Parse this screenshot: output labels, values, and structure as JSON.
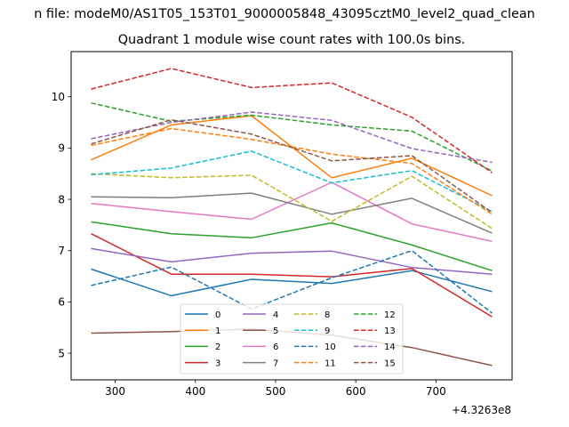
{
  "chart_data": {
    "type": "line",
    "suptitle": "n file: modeM0/AS1T05_153T01_9000005848_43095cztM0_level2_quad_clean",
    "title": "Quadrant 1 module wise count rates with 100.0s bins.",
    "xlabel": "",
    "ylabel": "",
    "x_offset_label": "+4.3263e8",
    "x": [
      270,
      370,
      470,
      570,
      670,
      770
    ],
    "xlim": [
      245,
      795
    ],
    "ylim": [
      4.48,
      10.88
    ],
    "xticks": [
      300,
      400,
      500,
      600,
      700
    ],
    "xtick_labels": [
      "300",
      "400",
      "500",
      "600",
      "700"
    ],
    "yticks": [
      5,
      6,
      7,
      8,
      9,
      10
    ],
    "ytick_labels": [
      "5",
      "6",
      "7",
      "8",
      "9",
      "10"
    ],
    "legend_position": "lower-center",
    "legend_columns": 4,
    "series": [
      {
        "name": "0",
        "color": "#1f77b4",
        "dash": "solid",
        "values": [
          6.64,
          6.12,
          6.44,
          6.36,
          6.61,
          6.2
        ]
      },
      {
        "name": "1",
        "color": "#ff7f0e",
        "dash": "solid",
        "values": [
          8.77,
          9.45,
          9.63,
          8.42,
          8.8,
          8.07
        ]
      },
      {
        "name": "2",
        "color": "#2ca02c",
        "dash": "solid",
        "values": [
          7.56,
          7.33,
          7.25,
          7.54,
          7.11,
          6.61
        ]
      },
      {
        "name": "3",
        "color": "#d62728",
        "dash": "solid",
        "values": [
          7.33,
          6.54,
          6.54,
          6.49,
          6.65,
          5.71
        ]
      },
      {
        "name": "4",
        "color": "#9467bd",
        "dash": "solid",
        "values": [
          7.04,
          6.78,
          6.95,
          6.99,
          6.67,
          6.54
        ]
      },
      {
        "name": "5",
        "color": "#8c564b",
        "dash": "solid",
        "values": [
          5.39,
          5.42,
          5.47,
          5.35,
          5.11,
          4.76
        ]
      },
      {
        "name": "6",
        "color": "#e377c2",
        "dash": "solid",
        "values": [
          7.92,
          7.76,
          7.61,
          8.33,
          7.52,
          7.18
        ]
      },
      {
        "name": "7",
        "color": "#7f7f7f",
        "dash": "solid",
        "values": [
          8.05,
          8.03,
          8.12,
          7.71,
          8.02,
          7.34
        ]
      },
      {
        "name": "8",
        "color": "#bcbd22",
        "dash": "dashed",
        "values": [
          8.5,
          8.42,
          8.47,
          7.57,
          8.45,
          7.43
        ]
      },
      {
        "name": "9",
        "color": "#17becf",
        "dash": "dashed",
        "values": [
          8.48,
          8.61,
          8.94,
          8.32,
          8.56,
          7.76
        ]
      },
      {
        "name": "10",
        "color": "#1f77b4",
        "dash": "dashed",
        "values": [
          6.32,
          6.68,
          5.86,
          6.47,
          7.0,
          5.78
        ]
      },
      {
        "name": "11",
        "color": "#ff7f0e",
        "dash": "dashed",
        "values": [
          9.05,
          9.38,
          9.17,
          8.88,
          8.7,
          7.71
        ]
      },
      {
        "name": "12",
        "color": "#2ca02c",
        "dash": "dashed",
        "values": [
          9.88,
          9.52,
          9.64,
          9.45,
          9.33,
          8.55
        ]
      },
      {
        "name": "13",
        "color": "#d62728",
        "dash": "dashed",
        "values": [
          10.15,
          10.55,
          10.18,
          10.27,
          9.6,
          8.52
        ]
      },
      {
        "name": "14",
        "color": "#9467bd",
        "dash": "dashed",
        "values": [
          9.18,
          9.5,
          9.7,
          9.54,
          8.99,
          8.72
        ]
      },
      {
        "name": "15",
        "color": "#8c564b",
        "dash": "dashed",
        "values": [
          9.08,
          9.55,
          9.27,
          8.75,
          8.85,
          7.74
        ]
      }
    ]
  }
}
